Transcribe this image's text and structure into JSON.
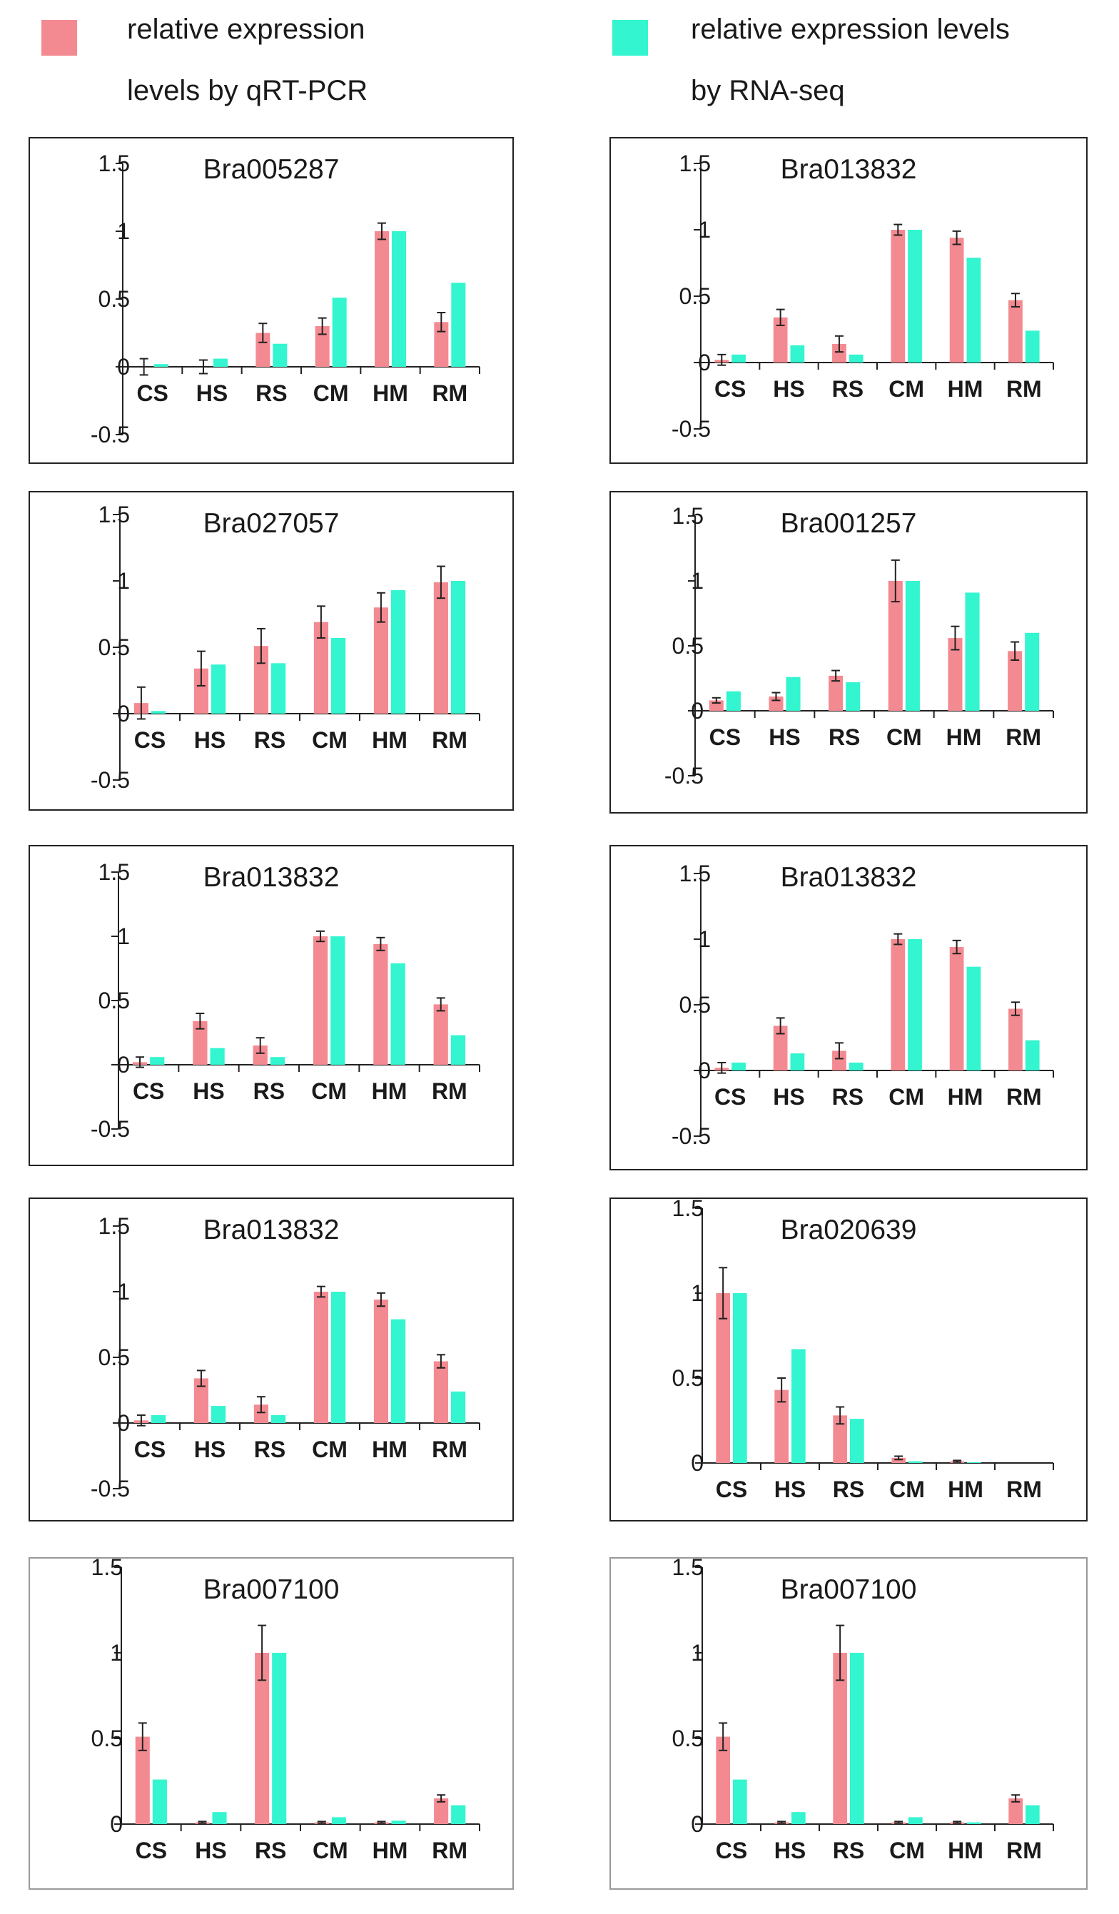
{
  "legend": {
    "qpcr": {
      "line1": "relative expression",
      "line2": "levels by qRT-PCR",
      "color": "#f48a91"
    },
    "rnaseq": {
      "line1": "relative expression levels",
      "line2": "by RNA-seq",
      "color": "#33f5cf"
    }
  },
  "chart_data": [
    {
      "type": "bar",
      "title": "Bra005287",
      "categories": [
        "CS",
        "HS",
        "RS",
        "CM",
        "HM",
        "RM"
      ],
      "yticks": [
        "1.5",
        "1",
        "0.5",
        "0",
        "-0.5"
      ],
      "ylim": [
        -0.5,
        1.5
      ],
      "series": [
        {
          "name": "relative expression levels by qRT-PCR",
          "values": [
            0.0,
            0.0,
            0.25,
            0.3,
            1.0,
            0.33
          ],
          "errors": [
            0.06,
            0.05,
            0.07,
            0.06,
            0.06,
            0.07
          ]
        },
        {
          "name": "relative expression levels by RNA-seq",
          "values": [
            0.02,
            0.06,
            0.17,
            0.51,
            1.0,
            0.62
          ]
        }
      ]
    },
    {
      "type": "bar",
      "title": "Bra013832",
      "categories": [
        "CS",
        "HS",
        "RS",
        "CM",
        "HM",
        "RM"
      ],
      "yticks": [
        "1.5",
        "1",
        "0.5",
        "0",
        "-0.5"
      ],
      "ylim": [
        -0.5,
        1.5
      ],
      "series": [
        {
          "name": "relative expression levels by qRT-PCR",
          "values": [
            0.02,
            0.34,
            0.14,
            1.0,
            0.94,
            0.47
          ],
          "errors": [
            0.04,
            0.06,
            0.06,
            0.04,
            0.05,
            0.05
          ]
        },
        {
          "name": "relative expression levels by RNA-seq",
          "values": [
            0.06,
            0.13,
            0.06,
            1.0,
            0.79,
            0.24
          ]
        }
      ]
    },
    {
      "type": "bar",
      "title": "Bra027057",
      "categories": [
        "CS",
        "HS",
        "RS",
        "CM",
        "HM",
        "RM"
      ],
      "yticks": [
        "1.5",
        "1",
        "0.5",
        "0",
        "-0.5"
      ],
      "ylim": [
        -0.5,
        1.5
      ],
      "series": [
        {
          "name": "relative expression levels by qRT-PCR",
          "values": [
            0.08,
            0.34,
            0.51,
            0.69,
            0.8,
            0.99
          ],
          "errors": [
            0.12,
            0.13,
            0.13,
            0.12,
            0.11,
            0.12
          ]
        },
        {
          "name": "relative expression levels by RNA-seq",
          "values": [
            0.02,
            0.37,
            0.38,
            0.57,
            0.93,
            1.0
          ]
        }
      ]
    },
    {
      "type": "bar",
      "title": "Bra001257",
      "categories": [
        "CS",
        "HS",
        "RS",
        "CM",
        "HM",
        "RM"
      ],
      "yticks": [
        "1.5",
        "1",
        "0.5",
        "0",
        "-0.5"
      ],
      "ylim": [
        -0.5,
        1.5
      ],
      "series": [
        {
          "name": "relative expression levels by qRT-PCR",
          "values": [
            0.08,
            0.11,
            0.27,
            1.0,
            0.56,
            0.46
          ],
          "errors": [
            0.02,
            0.03,
            0.04,
            0.16,
            0.09,
            0.07
          ]
        },
        {
          "name": "relative expression levels by RNA-seq",
          "values": [
            0.15,
            0.26,
            0.22,
            1.0,
            0.91,
            0.6
          ]
        }
      ]
    },
    {
      "type": "bar",
      "title": "Bra013832",
      "categories": [
        "CS",
        "HS",
        "RS",
        "CM",
        "HM",
        "RM"
      ],
      "yticks": [
        "1.5",
        "1",
        "0.5",
        "0",
        "-0.5"
      ],
      "ylim": [
        -0.5,
        1.5
      ],
      "series": [
        {
          "name": "relative expression levels by qRT-PCR",
          "values": [
            0.02,
            0.34,
            0.15,
            1.0,
            0.94,
            0.47
          ],
          "errors": [
            0.04,
            0.06,
            0.06,
            0.04,
            0.05,
            0.05
          ]
        },
        {
          "name": "relative expression levels by RNA-seq",
          "values": [
            0.06,
            0.13,
            0.06,
            1.0,
            0.79,
            0.23
          ]
        }
      ]
    },
    {
      "type": "bar",
      "title": "Bra013832",
      "categories": [
        "CS",
        "HS",
        "RS",
        "CM",
        "HM",
        "RM"
      ],
      "yticks": [
        "1.5",
        "1",
        "0.5",
        "0",
        "-0.5"
      ],
      "ylim": [
        -0.5,
        1.5
      ],
      "series": [
        {
          "name": "relative expression levels by qRT-PCR",
          "values": [
            0.02,
            0.34,
            0.15,
            1.0,
            0.94,
            0.47
          ],
          "errors": [
            0.04,
            0.06,
            0.06,
            0.04,
            0.05,
            0.05
          ]
        },
        {
          "name": "relative expression levels by RNA-seq",
          "values": [
            0.06,
            0.13,
            0.06,
            1.0,
            0.79,
            0.23
          ]
        }
      ]
    },
    {
      "type": "bar",
      "title": "Bra013832",
      "categories": [
        "CS",
        "HS",
        "RS",
        "CM",
        "HM",
        "RM"
      ],
      "yticks": [
        "1.5",
        "1",
        "0.5",
        "0",
        "-0.5"
      ],
      "ylim": [
        -0.5,
        1.5
      ],
      "series": [
        {
          "name": "relative expression levels by qRT-PCR",
          "values": [
            0.02,
            0.34,
            0.14,
            1.0,
            0.94,
            0.47
          ],
          "errors": [
            0.04,
            0.06,
            0.06,
            0.04,
            0.05,
            0.05
          ]
        },
        {
          "name": "relative expression levels by RNA-seq",
          "values": [
            0.06,
            0.13,
            0.06,
            1.0,
            0.79,
            0.24
          ]
        }
      ]
    },
    {
      "type": "bar",
      "title": "Bra020639",
      "categories": [
        "CS",
        "HS",
        "RS",
        "CM",
        "HM",
        "RM"
      ],
      "yticks": [
        "1.5",
        "1",
        "0.5",
        "0"
      ],
      "ylim": [
        0,
        1.5
      ],
      "series": [
        {
          "name": "relative expression levels by qRT-PCR",
          "values": [
            1.0,
            0.43,
            0.28,
            0.03,
            0.01,
            0.0
          ],
          "errors": [
            0.15,
            0.07,
            0.05,
            0.01,
            0.005,
            0.0
          ]
        },
        {
          "name": "relative expression levels by RNA-seq",
          "values": [
            1.0,
            0.67,
            0.26,
            0.01,
            0.005,
            0.0
          ]
        }
      ]
    },
    {
      "type": "bar",
      "title": "Bra007100",
      "categories": [
        "CS",
        "HS",
        "RS",
        "CM",
        "HM",
        "RM"
      ],
      "yticks": [
        "1.5",
        "1",
        "0.5",
        "0"
      ],
      "ylim": [
        0,
        1.5
      ],
      "series": [
        {
          "name": "relative expression levels by qRT-PCR",
          "values": [
            0.51,
            0.01,
            1.0,
            0.01,
            0.01,
            0.15
          ],
          "errors": [
            0.08,
            0.005,
            0.16,
            0.005,
            0.005,
            0.02
          ]
        },
        {
          "name": "relative expression levels by RNA-seq",
          "values": [
            0.26,
            0.07,
            1.0,
            0.04,
            0.02,
            0.11
          ]
        }
      ]
    },
    {
      "type": "bar",
      "title": "Bra007100",
      "categories": [
        "CS",
        "HS",
        "RS",
        "CM",
        "HM",
        "RM"
      ],
      "yticks": [
        "1.5",
        "1",
        "0.5",
        "0"
      ],
      "ylim": [
        0,
        1.5
      ],
      "series": [
        {
          "name": "relative expression levels by qRT-PCR",
          "values": [
            0.51,
            0.01,
            1.0,
            0.01,
            0.01,
            0.15
          ],
          "errors": [
            0.08,
            0.005,
            0.16,
            0.005,
            0.005,
            0.02
          ]
        },
        {
          "name": "relative expression levels by RNA-seq",
          "values": [
            0.26,
            0.07,
            1.0,
            0.04,
            0.01,
            0.11
          ]
        }
      ]
    }
  ]
}
